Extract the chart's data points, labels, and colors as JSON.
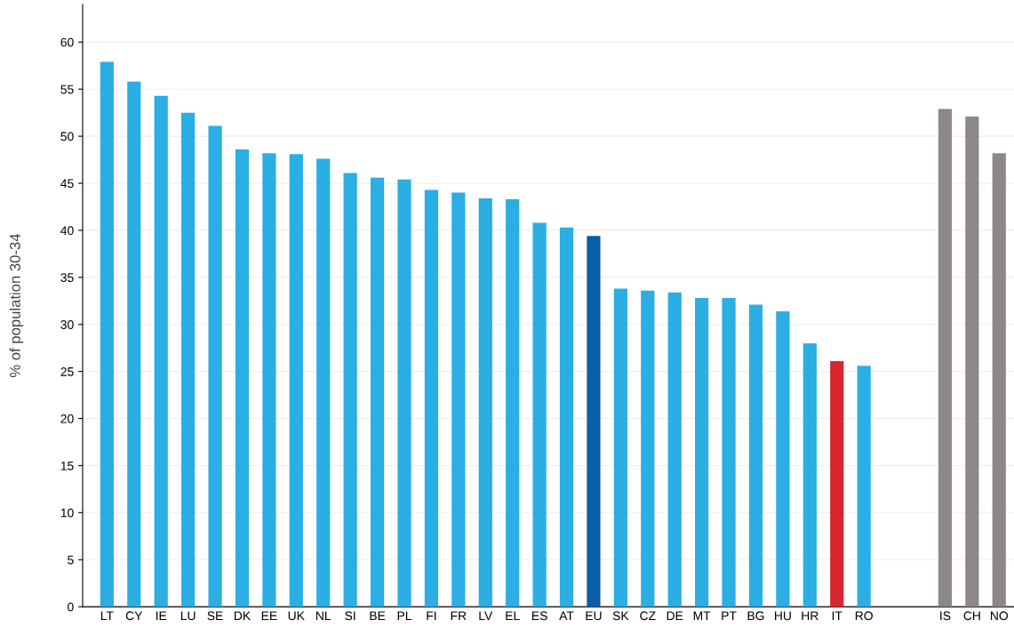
{
  "chart_data": {
    "type": "bar",
    "ylabel": "% of population 30-34",
    "categories": [
      "LT",
      "CY",
      "IE",
      "LU",
      "SE",
      "DK",
      "EE",
      "UK",
      "NL",
      "SI",
      "BE",
      "PL",
      "FI",
      "FR",
      "LV",
      "EL",
      "ES",
      "AT",
      "EU",
      "SK",
      "CZ",
      "DE",
      "MT",
      "PT",
      "BG",
      "HU",
      "HR",
      "IT",
      "RO",
      null,
      null,
      "IS",
      "CH",
      "NO"
    ],
    "values": [
      57.9,
      55.8,
      54.3,
      52.5,
      51.1,
      48.6,
      48.2,
      48.1,
      47.6,
      46.1,
      45.6,
      45.4,
      44.3,
      44.0,
      43.4,
      43.3,
      40.8,
      40.3,
      39.4,
      33.8,
      33.6,
      33.4,
      32.8,
      32.8,
      32.1,
      31.4,
      28.0,
      26.1,
      25.6,
      null,
      null,
      52.9,
      52.1,
      48.2
    ],
    "colors": [
      "#2aaee3",
      "#2aaee3",
      "#2aaee3",
      "#2aaee3",
      "#2aaee3",
      "#2aaee3",
      "#2aaee3",
      "#2aaee3",
      "#2aaee3",
      "#2aaee3",
      "#2aaee3",
      "#2aaee3",
      "#2aaee3",
      "#2aaee3",
      "#2aaee3",
      "#2aaee3",
      "#2aaee3",
      "#2aaee3",
      "#0b5fa8",
      "#2aaee3",
      "#2aaee3",
      "#2aaee3",
      "#2aaee3",
      "#2aaee3",
      "#2aaee3",
      "#2aaee3",
      "#2aaee3",
      "#d6262f",
      "#2aaee3",
      null,
      null,
      "#8e8788",
      "#8e8788",
      "#8e8788"
    ],
    "ylim": [
      0,
      64
    ],
    "yticks": [
      0,
      5,
      10,
      15,
      20,
      25,
      30,
      35,
      40,
      45,
      50,
      55,
      60
    ],
    "grid": "y"
  }
}
